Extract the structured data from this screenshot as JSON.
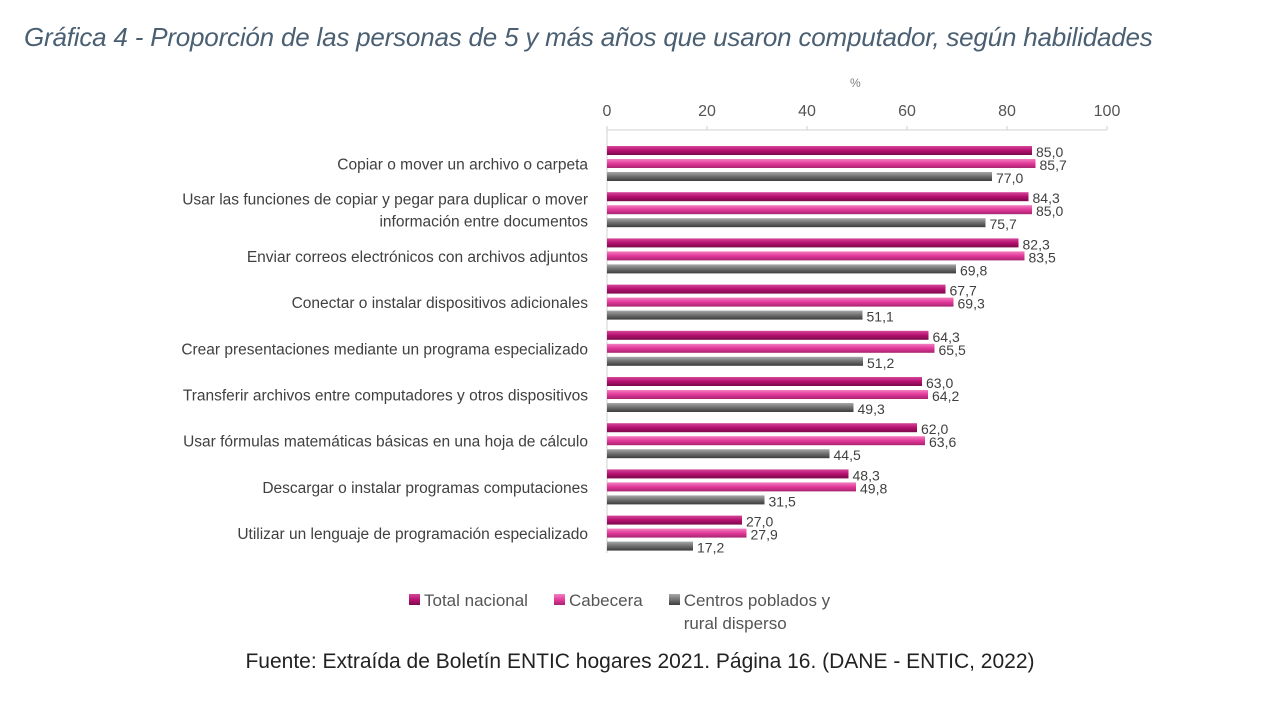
{
  "title": "Gráfica 4 - Proporción de las personas de 5 y más años que usaron computador, según habilidades",
  "source": "Fuente: Extraída de Boletín ENTIC hogares 2021. Página 16. (DANE - ENTIC, 2022)",
  "chart_data": {
    "type": "bar",
    "orientation": "horizontal",
    "unit": "%",
    "xlim": [
      0,
      100
    ],
    "xticks": [
      0,
      20,
      40,
      60,
      80,
      100
    ],
    "categories": [
      "Copiar o mover un archivo o carpeta",
      "Usar las funciones de copiar y pegar para duplicar o mover información entre documentos",
      "Enviar correos electrónicos con archivos adjuntos",
      "Conectar o instalar dispositivos adicionales",
      "Crear presentaciones mediante un programa especializado",
      "Transferir archivos entre computadores y otros dispositivos",
      "Usar fórmulas matemáticas básicas en una hoja de cálculo",
      "Descargar o instalar programas computaciones",
      "Utilizar un lenguaje de programación especializado"
    ],
    "category_lines": [
      [
        "Copiar o mover un archivo o carpeta"
      ],
      [
        "Usar las funciones de copiar y pegar para duplicar o mover",
        "información entre documentos"
      ],
      [
        "Enviar correos electrónicos con archivos adjuntos"
      ],
      [
        "Conectar o instalar dispositivos adicionales"
      ],
      [
        "Crear presentaciones mediante un programa especializado"
      ],
      [
        "Transferir archivos entre computadores y otros dispositivos"
      ],
      [
        "Usar fórmulas matemáticas básicas en una hoja de cálculo"
      ],
      [
        "Descargar o instalar programas computaciones"
      ],
      [
        "Utilizar un lenguaje de programación especializado"
      ]
    ],
    "series": [
      {
        "name": "Total nacional",
        "color": "#b5106f",
        "values": [
          85.0,
          84.3,
          82.3,
          67.7,
          64.3,
          63.0,
          62.0,
          48.3,
          27.0
        ],
        "labels": [
          "85,0",
          "84,3",
          "82,3",
          "67,7",
          "64,3",
          "63,0",
          "62,0",
          "48,3",
          "27,0"
        ]
      },
      {
        "name": "Cabecera",
        "color": "#e2389a",
        "values": [
          85.7,
          85.0,
          83.5,
          69.3,
          65.5,
          64.2,
          63.6,
          49.8,
          27.9
        ],
        "labels": [
          "85,7",
          "85,0",
          "83,5",
          "69,3",
          "65,5",
          "64,2",
          "63,6",
          "49,8",
          "27,9"
        ]
      },
      {
        "name": "Centros poblados y rural disperso",
        "color": "#6e6e6e",
        "values": [
          77.0,
          75.7,
          69.8,
          51.1,
          51.2,
          49.3,
          44.5,
          31.5,
          17.2
        ],
        "labels": [
          "77,0",
          "75,7",
          "69,8",
          "51,1",
          "51,2",
          "49,3",
          "44,5",
          "31,5",
          "17,2"
        ]
      }
    ]
  }
}
